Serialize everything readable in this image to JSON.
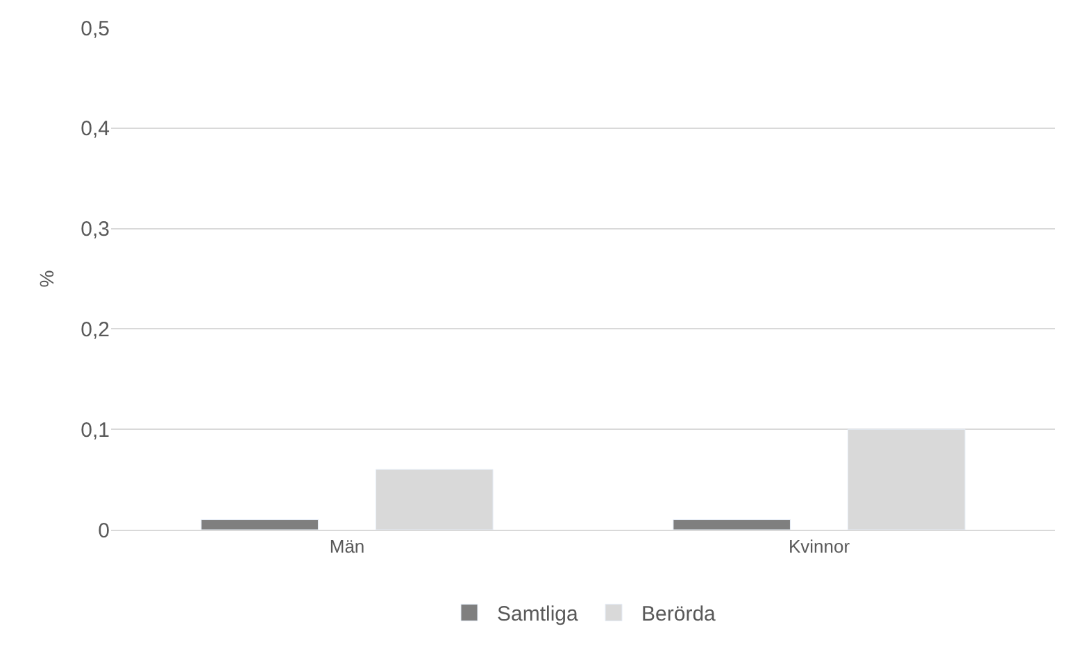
{
  "chart_data": {
    "type": "bar",
    "ylabel": "%",
    "categories": [
      "Män",
      "Kvinnor"
    ],
    "series": [
      {
        "name": "Samtliga",
        "color": "#7f7f7f",
        "values": [
          0.01,
          0.01
        ]
      },
      {
        "name": "Berörda",
        "color": "#d9d9d9",
        "values": [
          0.06,
          0.1
        ]
      }
    ],
    "ylim": [
      0,
      0.5
    ],
    "yticks": [
      {
        "value": 0,
        "label": "0"
      },
      {
        "value": 0.1,
        "label": "0,1"
      },
      {
        "value": 0.2,
        "label": "0,2"
      },
      {
        "value": 0.3,
        "label": "0,3"
      },
      {
        "value": 0.4,
        "label": "0,4"
      },
      {
        "value": 0.5,
        "label": "0,5"
      }
    ],
    "grid": "y",
    "legend": "bottom"
  }
}
